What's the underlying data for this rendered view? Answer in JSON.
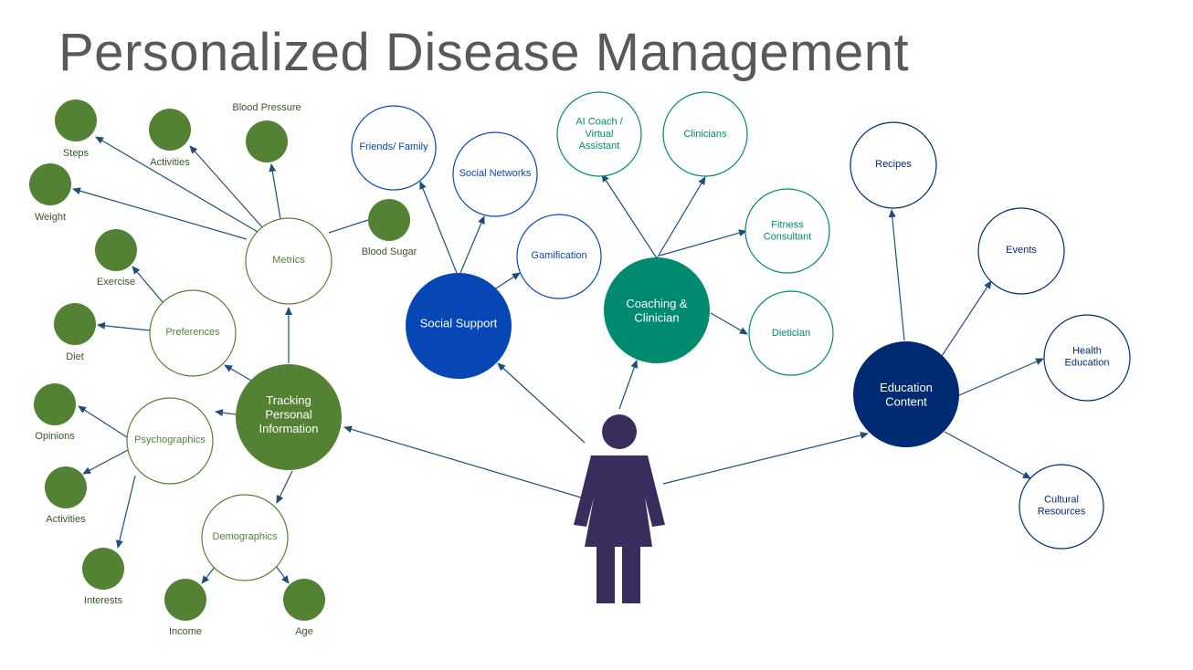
{
  "title": "Personalized Disease Management",
  "colors": {
    "green": "#548235",
    "dark_green": "#385723",
    "social_blue": "#0747b5",
    "teal": "#008a70",
    "navy": "#002b73",
    "person": "#3a2d5e",
    "arrow": "#1f4e79"
  },
  "person": {
    "icon": "woman-icon"
  },
  "hubs": {
    "tracking": "Tracking\nPersonal\nInformation",
    "social": "Social Support",
    "coaching": "Coaching &\nClinician",
    "education": "Education\nContent"
  },
  "tracking": {
    "metrics": {
      "label": "Metrics",
      "items": [
        "Steps",
        "Activities",
        "Blood Pressure",
        "Weight",
        "Blood Sugar"
      ]
    },
    "preferences": {
      "label": "Preferences",
      "items": [
        "Exercise",
        "Diet"
      ]
    },
    "psychographics": {
      "label": "Psychographics",
      "items": [
        "Opinions",
        "Activities",
        "Interests"
      ]
    },
    "demographics": {
      "label": "Demographics",
      "items": [
        "Income",
        "Age"
      ]
    }
  },
  "social_items": [
    "Friends/ Family",
    "Social Networks",
    "Gamification"
  ],
  "coaching_items": [
    "AI Coach /\nVirtual\nAssistant",
    "Clinicians",
    "Fitness\nConsultant",
    "Dietician"
  ],
  "education_items": [
    "Recipes",
    "Events",
    "Health\nEducation",
    "Cultural\nResources"
  ]
}
